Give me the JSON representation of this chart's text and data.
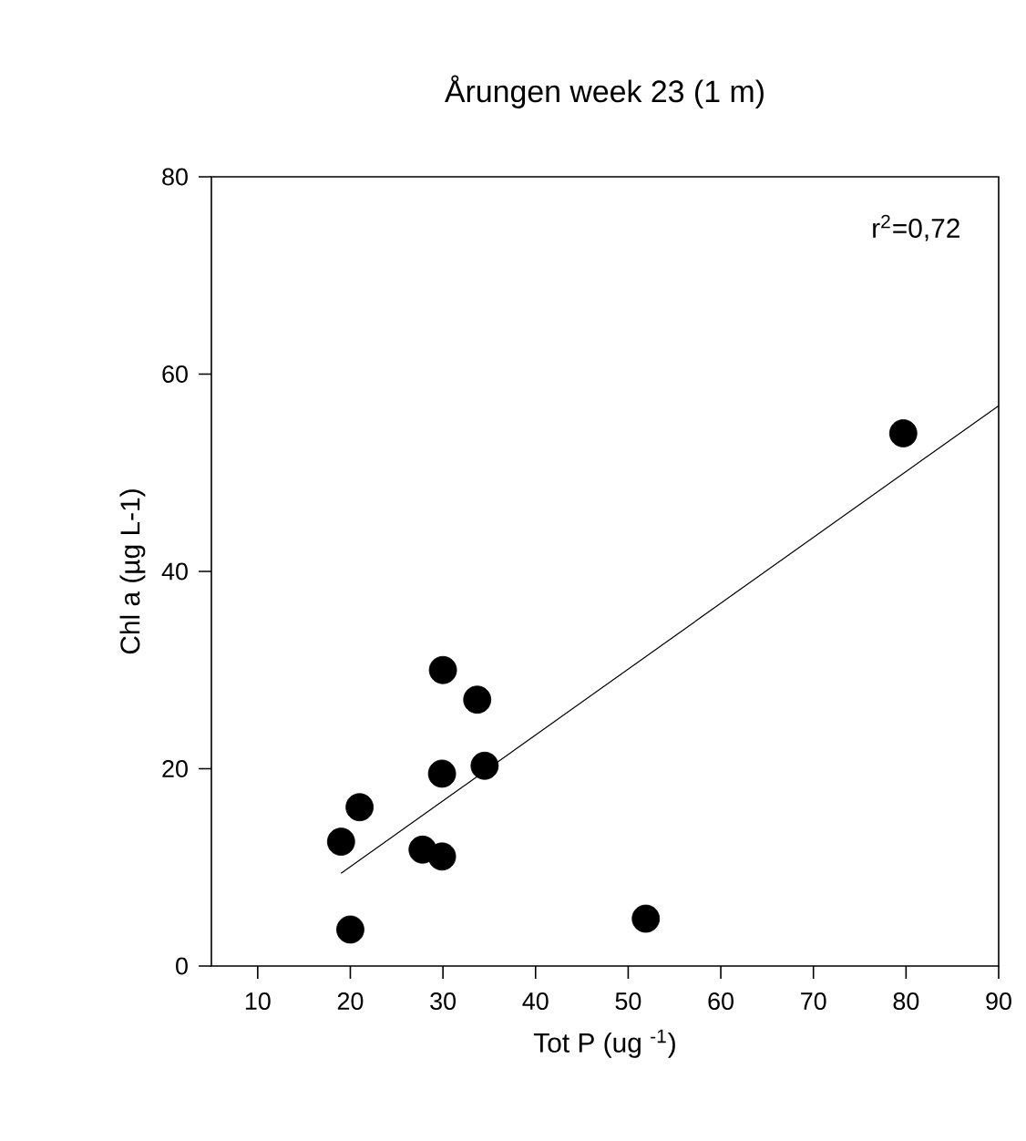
{
  "chart_data": {
    "type": "scatter",
    "title": "Årungen week 23 (1 m)",
    "xlabel": "Tot P (ug $^{-1}$)",
    "ylabel": "Chl a (µg L-1)",
    "xlim": [
      5,
      90
    ],
    "xticks": [
      10,
      20,
      30,
      40,
      50,
      60,
      70,
      80,
      90
    ],
    "ylim": [
      0,
      80
    ],
    "yticks": [
      0,
      20,
      40,
      60,
      80
    ],
    "grid": false,
    "annotations": [
      "r$^{2}$=0,72"
    ],
    "series": [
      {
        "marker": "circle",
        "color": "#000000",
        "x": [
          19,
          21,
          20,
          27.8,
          29.9,
          29.9,
          30,
          33.7,
          34.5,
          51.9,
          79.7
        ],
        "values": [
          12.6,
          16.1,
          3.7,
          11.8,
          11.1,
          19.5,
          30.0,
          27.0,
          20.3,
          4.8,
          54.0
        ]
      },
      {
        "type": "line",
        "marker": "none",
        "line_style": "solid",
        "color": "#000000",
        "x": [
          19,
          90
        ],
        "values": [
          9.4,
          56.8
        ]
      }
    ]
  }
}
